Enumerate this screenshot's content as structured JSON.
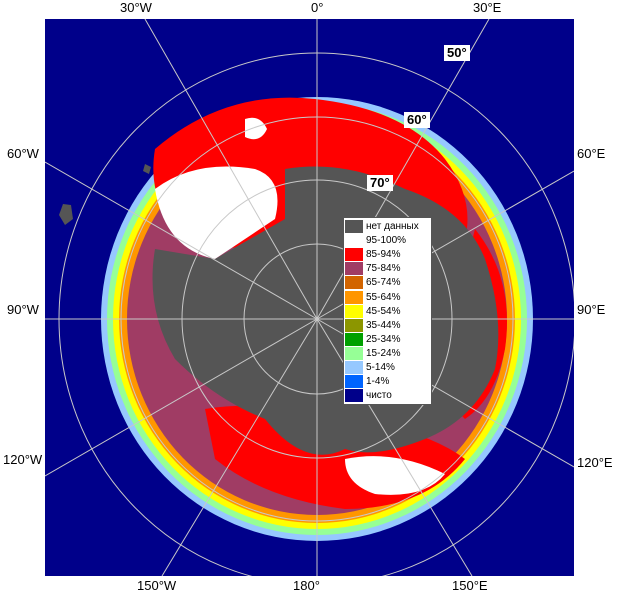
{
  "map": {
    "longitude_labels": {
      "top_30w": "30°W",
      "top_0": "0°",
      "top_30e": "30°E",
      "left_60w": "60°W",
      "left_90w": "90°W",
      "left_120w": "120°W",
      "right_60e": "60°E",
      "right_90e": "90°E",
      "right_120e": "120°E",
      "bottom_150w": "150°W",
      "bottom_180": "180°",
      "bottom_150e": "150°E"
    },
    "latitude_labels": {
      "lat50": "50°",
      "lat60": "60°",
      "lat70": "70°"
    }
  },
  "legend": {
    "items": [
      {
        "label": "нет данных",
        "color": "#555555"
      },
      {
        "label": "95-100%",
        "color": "#ffffff"
      },
      {
        "label": "85-94%",
        "color": "#ff0000"
      },
      {
        "label": "75-84%",
        "color": "#a03c64"
      },
      {
        "label": "65-74%",
        "color": "#d26400"
      },
      {
        "label": "55-64%",
        "color": "#ff9600"
      },
      {
        "label": "45-54%",
        "color": "#ffff00"
      },
      {
        "label": "35-44%",
        "color": "#8c9600"
      },
      {
        "label": "25-34%",
        "color": "#00a000"
      },
      {
        "label": "15-24%",
        "color": "#96ff96"
      },
      {
        "label": "5-14%",
        "color": "#96c8ff"
      },
      {
        "label": "1-4%",
        "color": "#0064ff"
      },
      {
        "label": "чисто",
        "color": "#00008a"
      }
    ]
  }
}
